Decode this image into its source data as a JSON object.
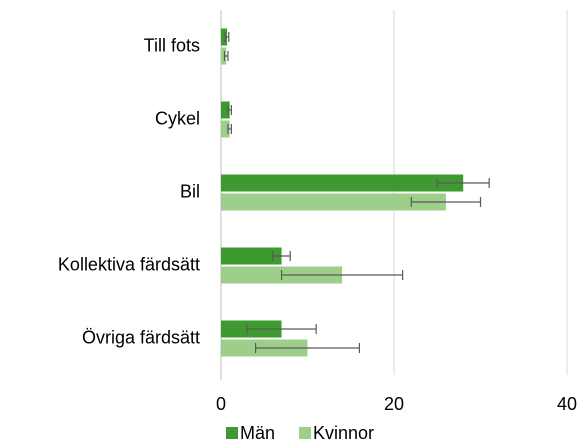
{
  "chart_data": {
    "type": "bar",
    "orientation": "horizontal",
    "categories": [
      "Till fots",
      "Cykel",
      "Bil",
      "Kollektiva färdsätt",
      "Övriga färdsätt"
    ],
    "series": [
      {
        "name": "Män",
        "color": "#3e9a30",
        "values": [
          0.7,
          1.0,
          28,
          7,
          7
        ],
        "errors": [
          0.2,
          0.2,
          3,
          1,
          4
        ]
      },
      {
        "name": "Kvinnor",
        "color": "#9dcf8a",
        "values": [
          0.6,
          1.0,
          26,
          14,
          10
        ],
        "errors": [
          0.2,
          0.2,
          4,
          7,
          6
        ]
      }
    ],
    "xlim": [
      0,
      40
    ],
    "xticks": [
      0,
      20,
      40
    ],
    "grid": true,
    "legend": "bottom"
  }
}
